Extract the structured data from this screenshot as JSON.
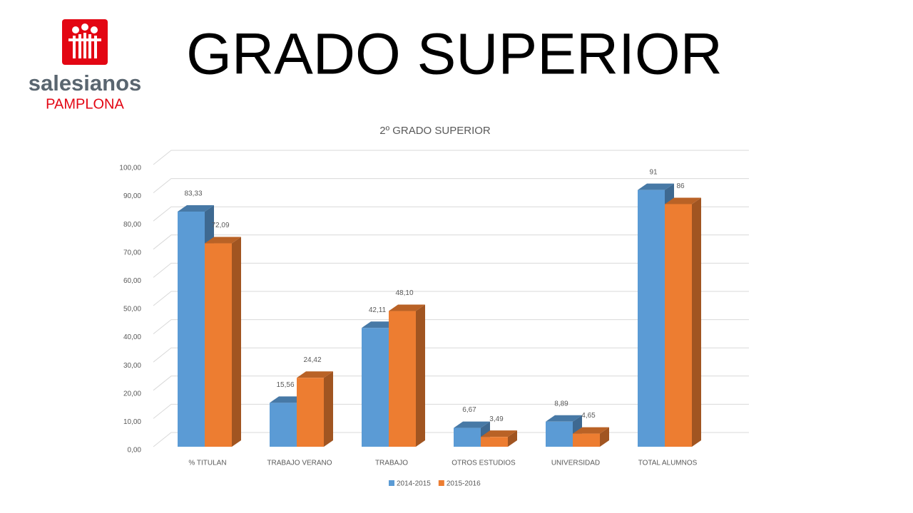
{
  "header": {
    "title": "GRADO SUPERIOR"
  },
  "logo": {
    "name": "salesianos",
    "place": "PAMPLONA"
  },
  "chart_data": {
    "type": "bar3d",
    "title": "2º GRADO SUPERIOR",
    "categories": [
      "% TITULAN",
      "TRABAJO VERANO",
      "TRABAJO",
      "OTROS ESTUDIOS",
      "UNIVERSIDAD",
      "TOTAL ALUMNOS"
    ],
    "series": [
      {
        "name": "2014-2015",
        "color": "#5b9bd5",
        "values": [
          83.33,
          15.56,
          42.11,
          6.67,
          8.89,
          91
        ],
        "value_labels": [
          "83,33",
          "15,56",
          "42,11",
          "6,67",
          "8,89",
          "91"
        ]
      },
      {
        "name": "2015-2016",
        "color": "#ed7d31",
        "values": [
          72.09,
          24.42,
          48.1,
          3.49,
          4.65,
          86
        ],
        "value_labels": [
          "72,09",
          "24,42",
          "48,10",
          "3,49",
          "4,65",
          "86"
        ]
      }
    ],
    "ylim": [
      0,
      100
    ],
    "yticks": [
      {
        "value": 0,
        "label": "0,00"
      },
      {
        "value": 10,
        "label": "10,00"
      },
      {
        "value": 20,
        "label": "20,00"
      },
      {
        "value": 30,
        "label": "30,00"
      },
      {
        "value": 40,
        "label": "40,00"
      },
      {
        "value": 50,
        "label": "50,00"
      },
      {
        "value": 60,
        "label": "60,00"
      },
      {
        "value": 70,
        "label": "70,00"
      },
      {
        "value": 80,
        "label": "80,00"
      },
      {
        "value": 90,
        "label": "90,00"
      },
      {
        "value": 100,
        "label": "100,00"
      }
    ],
    "grid": true,
    "legend": "bottom"
  }
}
